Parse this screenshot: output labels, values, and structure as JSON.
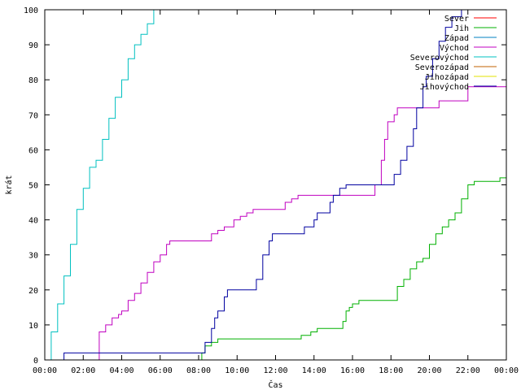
{
  "chart_data": {
    "type": "line",
    "xlabel": "Čas",
    "ylabel": "krát",
    "xlim": [
      "00:00",
      "24:00"
    ],
    "ylim": [
      0,
      100
    ],
    "grid": false,
    "legend_position": "top-right",
    "x_tick_labels": [
      "00:00",
      "02:00",
      "04:00",
      "06:00",
      "08:00",
      "10:00",
      "12:00",
      "14:00",
      "16:00",
      "18:00",
      "20:00",
      "22:00",
      "00:00"
    ],
    "y_tick_labels": [
      "0",
      "10",
      "20",
      "30",
      "40",
      "50",
      "60",
      "70",
      "80",
      "90",
      "100"
    ],
    "series": [
      {
        "name": "Sever",
        "color": "#ff0000",
        "points": []
      },
      {
        "name": "Jih",
        "color": "#00b000",
        "points": [
          [
            "00:00",
            0
          ],
          [
            "08:00",
            0
          ],
          [
            "08:10",
            2
          ],
          [
            "08:20",
            4
          ],
          [
            "08:40",
            5
          ],
          [
            "09:00",
            6
          ],
          [
            "13:00",
            6
          ],
          [
            "13:20",
            7
          ],
          [
            "13:50",
            8
          ],
          [
            "14:10",
            9
          ],
          [
            "15:20",
            9
          ],
          [
            "15:30",
            11
          ],
          [
            "15:40",
            14
          ],
          [
            "15:50",
            15
          ],
          [
            "16:00",
            16
          ],
          [
            "16:20",
            17
          ],
          [
            "18:00",
            17
          ],
          [
            "18:20",
            21
          ],
          [
            "18:40",
            23
          ],
          [
            "19:00",
            26
          ],
          [
            "19:20",
            28
          ],
          [
            "19:40",
            29
          ],
          [
            "20:00",
            33
          ],
          [
            "20:20",
            36
          ],
          [
            "20:40",
            38
          ],
          [
            "21:00",
            40
          ],
          [
            "21:20",
            42
          ],
          [
            "21:40",
            46
          ],
          [
            "22:00",
            50
          ],
          [
            "22:20",
            51
          ],
          [
            "23:40",
            52
          ],
          [
            "24:00",
            53
          ]
        ]
      },
      {
        "name": "Západ",
        "color": "#0080c0",
        "points": []
      },
      {
        "name": "Východ",
        "color": "#c000c0",
        "points": [
          [
            "00:00",
            0
          ],
          [
            "02:40",
            0
          ],
          [
            "02:50",
            8
          ],
          [
            "03:10",
            10
          ],
          [
            "03:30",
            12
          ],
          [
            "03:50",
            13
          ],
          [
            "04:00",
            14
          ],
          [
            "04:20",
            17
          ],
          [
            "04:40",
            19
          ],
          [
            "05:00",
            22
          ],
          [
            "05:20",
            25
          ],
          [
            "05:40",
            28
          ],
          [
            "06:00",
            30
          ],
          [
            "06:20",
            33
          ],
          [
            "06:30",
            34
          ],
          [
            "08:30",
            34
          ],
          [
            "08:40",
            36
          ],
          [
            "09:00",
            37
          ],
          [
            "09:20",
            38
          ],
          [
            "09:50",
            40
          ],
          [
            "10:10",
            41
          ],
          [
            "10:30",
            42
          ],
          [
            "10:50",
            43
          ],
          [
            "12:20",
            43
          ],
          [
            "12:30",
            45
          ],
          [
            "12:50",
            46
          ],
          [
            "13:10",
            47
          ],
          [
            "17:00",
            47
          ],
          [
            "17:10",
            50
          ],
          [
            "17:30",
            57
          ],
          [
            "17:40",
            63
          ],
          [
            "17:50",
            68
          ],
          [
            "18:10",
            70
          ],
          [
            "18:20",
            72
          ],
          [
            "20:20",
            72
          ],
          [
            "20:30",
            74
          ],
          [
            "21:50",
            74
          ],
          [
            "22:00",
            78
          ],
          [
            "24:00",
            78
          ]
        ]
      },
      {
        "name": "Severovýchod",
        "color": "#00c0c0",
        "points": [
          [
            "00:00",
            0
          ],
          [
            "00:20",
            8
          ],
          [
            "00:40",
            16
          ],
          [
            "01:00",
            24
          ],
          [
            "01:20",
            33
          ],
          [
            "01:40",
            43
          ],
          [
            "02:00",
            49
          ],
          [
            "02:20",
            55
          ],
          [
            "02:40",
            57
          ],
          [
            "03:00",
            63
          ],
          [
            "03:20",
            69
          ],
          [
            "03:40",
            75
          ],
          [
            "04:00",
            80
          ],
          [
            "04:20",
            86
          ],
          [
            "04:40",
            90
          ],
          [
            "05:00",
            93
          ],
          [
            "05:20",
            96
          ],
          [
            "05:40",
            100
          ]
        ]
      },
      {
        "name": "Severozápad",
        "color": "#c06000",
        "points": []
      },
      {
        "name": "Jihozápad",
        "color": "#e0e000",
        "points": []
      },
      {
        "name": "Jihovýchod",
        "color": "#0000a0",
        "points": [
          [
            "00:00",
            0
          ],
          [
            "00:55",
            0
          ],
          [
            "01:00",
            2
          ],
          [
            "08:10",
            2
          ],
          [
            "08:20",
            5
          ],
          [
            "08:40",
            9
          ],
          [
            "08:50",
            12
          ],
          [
            "09:00",
            14
          ],
          [
            "09:20",
            18
          ],
          [
            "09:30",
            20
          ],
          [
            "10:50",
            20
          ],
          [
            "11:00",
            23
          ],
          [
            "11:20",
            30
          ],
          [
            "11:40",
            34
          ],
          [
            "11:50",
            36
          ],
          [
            "13:20",
            36
          ],
          [
            "13:30",
            38
          ],
          [
            "14:00",
            40
          ],
          [
            "14:10",
            42
          ],
          [
            "14:40",
            42
          ],
          [
            "14:50",
            45
          ],
          [
            "15:00",
            47
          ],
          [
            "15:20",
            49
          ],
          [
            "15:40",
            50
          ],
          [
            "18:00",
            50
          ],
          [
            "18:10",
            53
          ],
          [
            "18:30",
            57
          ],
          [
            "18:50",
            61
          ],
          [
            "19:10",
            66
          ],
          [
            "19:20",
            72
          ],
          [
            "19:40",
            78
          ],
          [
            "19:50",
            81
          ],
          [
            "20:10",
            86
          ],
          [
            "20:30",
            91
          ],
          [
            "20:50",
            95
          ],
          [
            "21:10",
            98
          ],
          [
            "21:40",
            100
          ]
        ]
      }
    ]
  }
}
